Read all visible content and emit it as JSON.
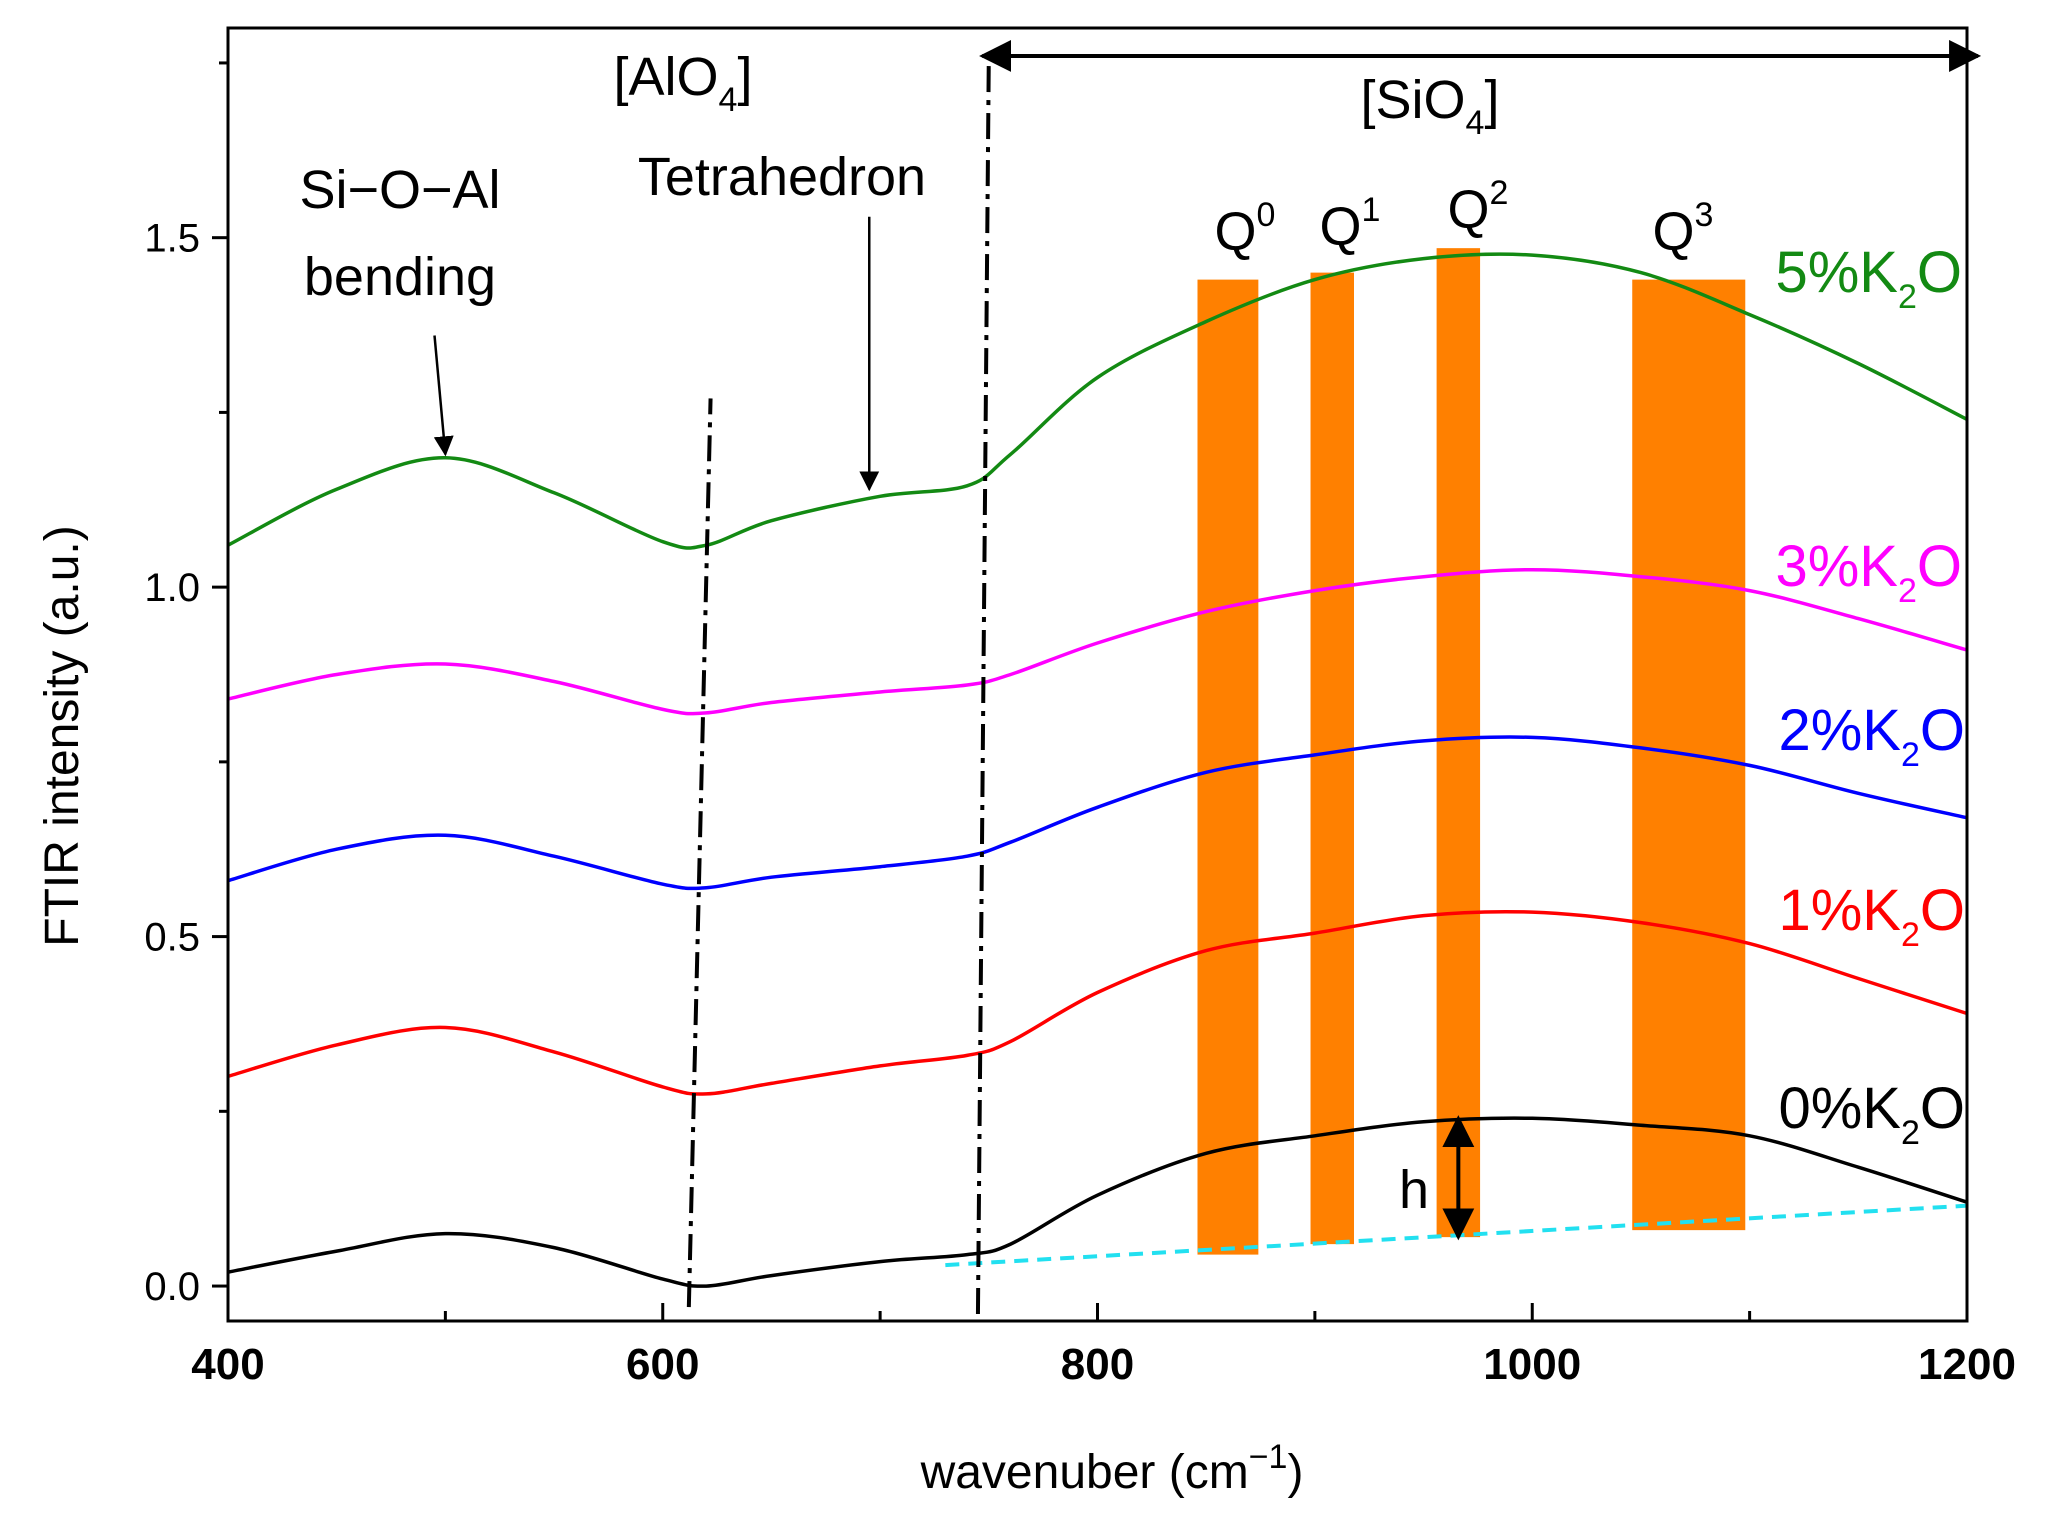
{
  "chart_data": {
    "type": "line",
    "title": "",
    "xlabel": {
      "main": "wavenuber (cm",
      "sup": "−1",
      "close": ")"
    },
    "ylabel": "FTIR intensity (a.u.)",
    "xlim": [
      400,
      1200
    ],
    "ylim": [
      -0.05,
      1.8
    ],
    "xticks": [
      400,
      600,
      800,
      1000,
      1200
    ],
    "xtick_labels": [
      "400",
      "600",
      "800",
      "1000",
      "1200"
    ],
    "yticks": [
      0.0,
      0.5,
      1.0,
      1.5
    ],
    "ytick_labels": [
      "0.0",
      "0.5",
      "1.0",
      "1.5"
    ],
    "y_minor_ticks": [
      0.25,
      0.75,
      1.25,
      1.75
    ],
    "grid": false,
    "series": [
      {
        "name": {
          "pre": "0%K",
          "sub": "2",
          "post": "O"
        },
        "color": "#000000",
        "x": [
          400,
          450,
          500,
          550,
          600,
          620,
          650,
          700,
          740,
          760,
          800,
          850,
          900,
          950,
          1000,
          1050,
          1100,
          1150,
          1200
        ],
        "y": [
          0.02,
          0.05,
          0.075,
          0.055,
          0.01,
          0.0,
          0.015,
          0.035,
          0.045,
          0.06,
          0.13,
          0.19,
          0.215,
          0.235,
          0.24,
          0.23,
          0.215,
          0.17,
          0.12
        ]
      },
      {
        "name": {
          "pre": "1%K",
          "sub": "2",
          "post": "O"
        },
        "color": "#ff0000",
        "x": [
          400,
          450,
          500,
          550,
          600,
          620,
          650,
          700,
          740,
          760,
          800,
          850,
          900,
          950,
          1000,
          1050,
          1100,
          1150,
          1200
        ],
        "y": [
          0.3,
          0.345,
          0.37,
          0.335,
          0.285,
          0.275,
          0.29,
          0.315,
          0.33,
          0.35,
          0.42,
          0.48,
          0.505,
          0.53,
          0.535,
          0.52,
          0.49,
          0.44,
          0.39
        ]
      },
      {
        "name": {
          "pre": "2%K",
          "sub": "2",
          "post": "O"
        },
        "color": "#0000ff",
        "x": [
          400,
          450,
          500,
          550,
          600,
          620,
          650,
          700,
          740,
          760,
          800,
          850,
          900,
          950,
          1000,
          1050,
          1100,
          1150,
          1200
        ],
        "y": [
          0.58,
          0.625,
          0.645,
          0.615,
          0.575,
          0.57,
          0.585,
          0.6,
          0.615,
          0.635,
          0.685,
          0.735,
          0.76,
          0.78,
          0.785,
          0.77,
          0.745,
          0.705,
          0.67
        ]
      },
      {
        "name": {
          "pre": "3%K",
          "sub": "2",
          "post": "O"
        },
        "color": "#ff00ff",
        "x": [
          400,
          450,
          500,
          550,
          600,
          620,
          650,
          700,
          740,
          760,
          800,
          850,
          900,
          950,
          1000,
          1050,
          1100,
          1150,
          1200
        ],
        "y": [
          0.84,
          0.875,
          0.89,
          0.865,
          0.825,
          0.82,
          0.835,
          0.85,
          0.86,
          0.875,
          0.92,
          0.965,
          0.995,
          1.015,
          1.025,
          1.015,
          0.995,
          0.955,
          0.91
        ]
      },
      {
        "name": {
          "pre": "5%K",
          "sub": "2",
          "post": "O"
        },
        "color": "#138a13",
        "x": [
          400,
          450,
          500,
          550,
          600,
          620,
          650,
          700,
          740,
          760,
          800,
          850,
          900,
          950,
          1000,
          1050,
          1100,
          1150,
          1200
        ],
        "y": [
          1.06,
          1.14,
          1.185,
          1.135,
          1.065,
          1.06,
          1.095,
          1.13,
          1.145,
          1.19,
          1.3,
          1.38,
          1.44,
          1.47,
          1.475,
          1.45,
          1.39,
          1.32,
          1.24
        ]
      }
    ],
    "baseline": {
      "color": "#22e0f0",
      "x": [
        730,
        1200
      ],
      "y": [
        0.03,
        0.115
      ]
    },
    "vertical_markers": [
      {
        "x": [
          612,
          622
        ],
        "y": [
          -0.03,
          1.27
        ]
      },
      {
        "x": [
          745,
          750
        ],
        "y": [
          -0.04,
          1.76
        ]
      }
    ],
    "range_arrow": {
      "x1": 747,
      "x2": 1205,
      "y": 1.76,
      "label": {
        "pre": "[SiO",
        "sub": "4",
        "post": "]"
      }
    },
    "bands": {
      "color": "#ff8000",
      "items": [
        {
          "label": "Q",
          "sup": "0",
          "x0": 846,
          "x1": 874,
          "y0": 0.045,
          "y1": 1.44
        },
        {
          "label": "Q",
          "sup": "1",
          "x0": 898,
          "x1": 918,
          "y0": 0.06,
          "y1": 1.45
        },
        {
          "label": "Q",
          "sup": "2",
          "x0": 956,
          "x1": 976,
          "y0": 0.07,
          "y1": 1.485
        },
        {
          "label": "Q",
          "sup": "3",
          "x0": 1046,
          "x1": 1098,
          "y0": 0.08,
          "y1": 1.44
        }
      ]
    },
    "annotations": {
      "sioal": {
        "line1": "Si−O−Al",
        "line2": "bending"
      },
      "alo4": {
        "pre": "[AlO",
        "sub": "4",
        "post": "]"
      },
      "tetra": "Tetrahedron",
      "h": "h"
    },
    "annotation_arrows": [
      {
        "from": [
          495,
          1.36
        ],
        "to": [
          500,
          1.19
        ]
      },
      {
        "from": [
          695,
          1.53
        ],
        "to": [
          695,
          1.14
        ]
      }
    ],
    "h_arrow": {
      "x": 966,
      "y_top": 0.24,
      "y_bottom": 0.07
    }
  }
}
